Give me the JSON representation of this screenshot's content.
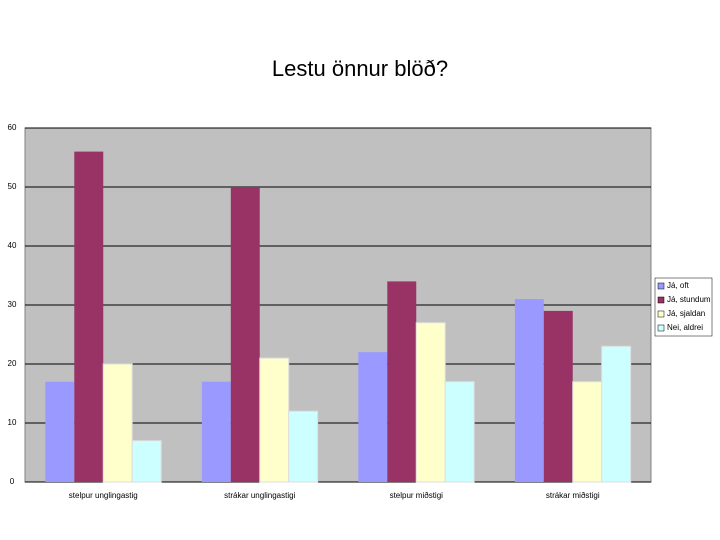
{
  "chart_data": {
    "type": "bar",
    "title": "Lestu önnur blöð?",
    "categories": [
      "stelpur unglingastig",
      "strákar unglingastigi",
      "stelpur miðstigi",
      "strákar miðstigi"
    ],
    "series": [
      {
        "name": "Já, oft",
        "color": "#9999ff",
        "values": [
          17,
          17,
          22,
          31
        ]
      },
      {
        "name": "Já, stundum",
        "color": "#993366",
        "values": [
          56,
          50,
          34,
          29
        ]
      },
      {
        "name": "Já, sjaldan",
        "color": "#ffffcc",
        "values": [
          20,
          21,
          27,
          17
        ]
      },
      {
        "name": "Nei, aldrei",
        "color": "#ccffff",
        "values": [
          7,
          12,
          17,
          23
        ]
      }
    ],
    "ylim": [
      0,
      60
    ],
    "yticks": [
      0,
      10,
      20,
      30,
      40,
      50,
      60
    ],
    "grid": true,
    "legend": "right"
  }
}
